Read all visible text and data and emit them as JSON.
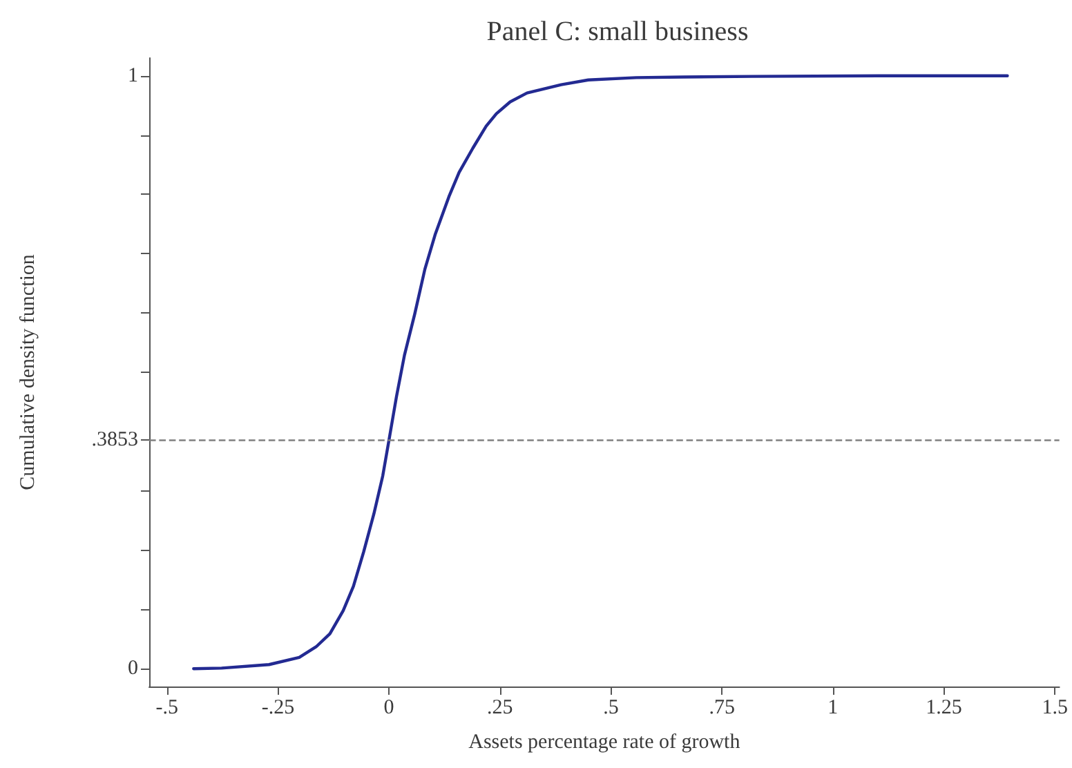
{
  "chart_data": {
    "type": "line",
    "title": "Panel C: small business",
    "xlabel": "Assets percentage rate of growth",
    "ylabel": "Cumulative density function",
    "x": [
      -0.44,
      -0.377,
      -0.27,
      -0.202,
      -0.164,
      -0.133,
      -0.103,
      -0.08,
      -0.057,
      -0.034,
      -0.014,
      0,
      0.017,
      0.035,
      0.058,
      0.081,
      0.104,
      0.135,
      0.158,
      0.189,
      0.219,
      0.242,
      0.273,
      0.311,
      0.388,
      0.449,
      0.557,
      0.664,
      0.817,
      1.124,
      1.393
    ],
    "series": [
      {
        "color": "#232a92",
        "values": [
          0,
          0.001,
          0.007,
          0.019,
          0.037,
          0.059,
          0.098,
          0.139,
          0.197,
          0.261,
          0.325,
          0.385,
          0.459,
          0.529,
          0.598,
          0.674,
          0.732,
          0.796,
          0.837,
          0.878,
          0.915,
          0.936,
          0.956,
          0.971,
          0.985,
          0.993,
          0.997,
          0.998,
          0.999,
          1,
          1
        ]
      }
    ],
    "xlim": [
      -0.54,
      1.51
    ],
    "ylim": [
      -0.03,
      1.03
    ],
    "xticks": [
      {
        "value": -0.5,
        "label": "-.5"
      },
      {
        "value": -0.25,
        "label": "-.25"
      },
      0,
      {
        "value": 0.25,
        "label": ".25"
      },
      {
        "value": 0.5,
        "label": ".5"
      },
      {
        "value": 0.75,
        "label": ".75"
      },
      1,
      1.25,
      1.5
    ],
    "yticks": [
      0,
      {
        "value": 0.1,
        "label": null
      },
      {
        "value": 0.2,
        "label": null
      },
      {
        "value": 0.3,
        "label": null
      },
      {
        "value": 0.3853,
        "label": ".3853"
      },
      {
        "value": 0.5,
        "label": null
      },
      {
        "value": 0.6,
        "label": null
      },
      {
        "value": 0.7,
        "label": null
      },
      {
        "value": 0.8,
        "label": null
      },
      {
        "value": 0.9,
        "label": null
      },
      1
    ],
    "ref_lines": [
      {
        "axis": "y",
        "value": 0.3853,
        "color": "#808080",
        "line_style": "dashed"
      }
    ],
    "marker": "none",
    "line_style": "solid",
    "grid": false
  }
}
